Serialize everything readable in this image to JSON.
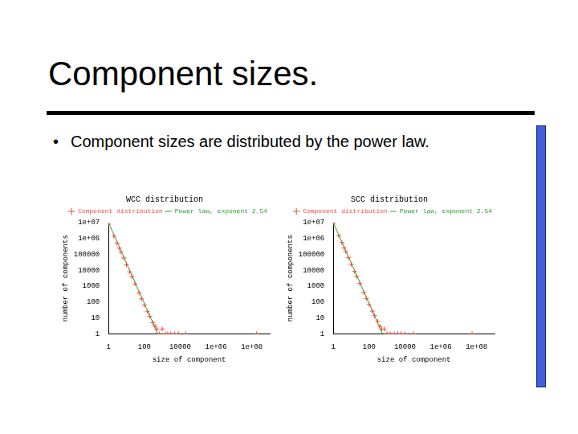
{
  "title": "Component sizes.",
  "bullets": [
    "Component sizes are distributed by the power law."
  ],
  "chart_data": [
    {
      "type": "scatter",
      "title": "WCC distribution",
      "x_label": "size of component",
      "y_label": "number of components",
      "log": true,
      "grid": false,
      "legend": "upper right",
      "xlim": [
        1,
        1000000000
      ],
      "xticks": [
        1,
        100,
        10000,
        {
          "value": 1000000,
          "label": "1e+06"
        },
        {
          "value": 100000000,
          "label": "1e+08"
        }
      ],
      "ylim": [
        1,
        10000000
      ],
      "yticks": [
        1,
        10,
        100,
        1000,
        10000,
        100000,
        {
          "value": 1000000,
          "label": "1e+06"
        },
        {
          "value": 10000000,
          "label": "1e+07"
        }
      ],
      "series": [
        {
          "name": "Component distribution",
          "type": "scatter",
          "marker": "plus",
          "color": "#e8503a",
          "x": [
            1,
            2,
            3,
            4,
            5,
            7,
            10,
            15,
            20,
            30,
            50,
            70,
            100,
            150,
            200,
            300,
            400,
            500,
            700,
            1000,
            1500,
            2000,
            3000,
            5000,
            8000,
            20000,
            186000000
          ],
          "values": [
            8000000,
            1400000,
            520000,
            250000,
            140000,
            60000,
            23000,
            8000,
            4000,
            1400,
            380,
            160,
            65,
            25,
            13,
            5,
            3,
            2,
            1,
            2,
            1,
            1,
            1,
            1,
            1,
            1,
            1
          ]
        },
        {
          "name": "Power law, exponent 2.54",
          "type": "line",
          "line_style": "solid",
          "color": "#2ca02c",
          "x": [
            1,
            560
          ],
          "values": [
            10000000,
            1
          ]
        }
      ]
    },
    {
      "type": "scatter",
      "title": "SCC distribution",
      "x_label": "size of component",
      "y_label": "number of components",
      "log": true,
      "grid": false,
      "legend": "upper right",
      "xlim": [
        1,
        1000000000
      ],
      "xticks": [
        1,
        100,
        10000,
        {
          "value": 1000000,
          "label": "1e+06"
        },
        {
          "value": 100000000,
          "label": "1e+08"
        }
      ],
      "ylim": [
        1,
        10000000
      ],
      "yticks": [
        1,
        10,
        100,
        1000,
        10000,
        100000,
        {
          "value": 1000000,
          "label": "1e+06"
        },
        {
          "value": 10000000,
          "label": "1e+07"
        }
      ],
      "series": [
        {
          "name": "Component distribution",
          "type": "scatter",
          "marker": "plus",
          "color": "#e8503a",
          "x": [
            1,
            2,
            3,
            4,
            5,
            7,
            10,
            15,
            20,
            30,
            50,
            70,
            100,
            150,
            200,
            300,
            400,
            500,
            700,
            1000,
            1500,
            2500,
            4000,
            6000,
            10000,
            30000,
            56000000
          ],
          "values": [
            9000000,
            1500000,
            560000,
            260000,
            150000,
            62000,
            24000,
            8500,
            4200,
            1500,
            400,
            170,
            70,
            27,
            14,
            6,
            3,
            2,
            2,
            1,
            1,
            1,
            1,
            1,
            1,
            1,
            1
          ]
        },
        {
          "name": "Power law, exponent 2.54",
          "type": "line",
          "line_style": "solid",
          "color": "#2ca02c",
          "x": [
            1,
            560
          ],
          "values": [
            10000000,
            1
          ]
        }
      ]
    }
  ]
}
